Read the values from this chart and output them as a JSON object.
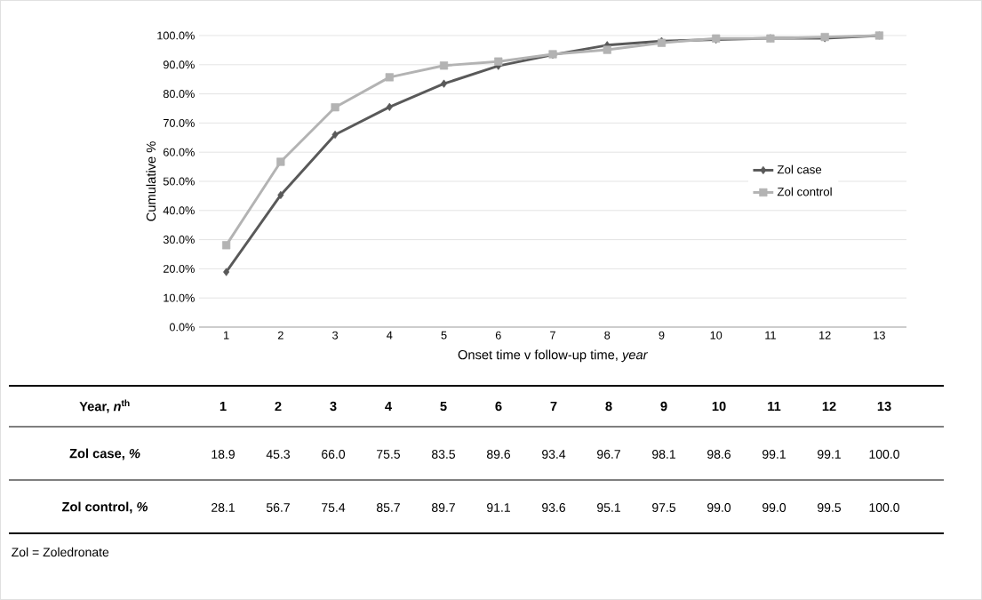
{
  "chart_data": {
    "type": "line",
    "xlabel": "Onset time v follow-up time, *year*",
    "ylabel": "Cumulative %",
    "categories": [
      "1",
      "2",
      "3",
      "4",
      "5",
      "6",
      "7",
      "8",
      "9",
      "10",
      "11",
      "12",
      "13"
    ],
    "series": [
      {
        "name": "Zol case",
        "color": "#595959",
        "marker": "diamond",
        "values": [
          18.9,
          45.3,
          66.0,
          75.5,
          83.5,
          89.6,
          93.4,
          96.7,
          98.1,
          98.6,
          99.1,
          99.1,
          100.0
        ],
        "value_labels": [
          "18.9",
          "45.3",
          "66.0",
          "75.5",
          "83.5",
          "89.6",
          "93.4",
          "96.7",
          "98.1",
          "98.6",
          "99.1",
          "99.1",
          "100.0"
        ]
      },
      {
        "name": "Zol control",
        "color": "#b3b3b3",
        "marker": "square",
        "values": [
          28.1,
          56.7,
          75.4,
          85.7,
          89.7,
          91.1,
          93.6,
          95.1,
          97.5,
          99.0,
          99.0,
          99.5,
          100.0
        ],
        "value_labels": [
          "28.1",
          "56.7",
          "75.4",
          "85.7",
          "89.7",
          "91.1",
          "93.6",
          "95.1",
          "97.5",
          "99.0",
          "99.0",
          "99.5",
          "100.0"
        ]
      }
    ],
    "ylim": [
      0,
      100
    ],
    "yticks": [
      {
        "value": 0,
        "label": "0.0%"
      },
      {
        "value": 10,
        "label": "10.0%"
      },
      {
        "value": 20,
        "label": "20.0%"
      },
      {
        "value": 30,
        "label": "30.0%"
      },
      {
        "value": 40,
        "label": "40.0%"
      },
      {
        "value": 50,
        "label": "50.0%"
      },
      {
        "value": 60,
        "label": "60.0%"
      },
      {
        "value": 70,
        "label": "70.0%"
      },
      {
        "value": 80,
        "label": "80.0%"
      },
      {
        "value": 90,
        "label": "90.0%"
      },
      {
        "value": 100,
        "label": "100.0%"
      }
    ],
    "grid": "y",
    "legend": "right",
    "line_style": "solid",
    "annotations": [
      "Year, *n*$^{th}$",
      "Zol case, *%*",
      "Zol control, *%*",
      "Zol = Zoledronate"
    ]
  }
}
